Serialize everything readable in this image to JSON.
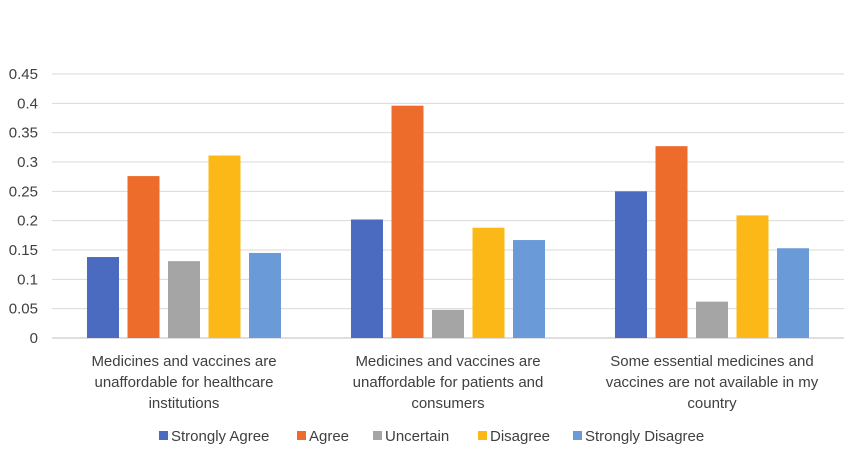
{
  "chart_data": {
    "type": "bar",
    "title": "",
    "xlabel": "",
    "ylabel": "",
    "ylim": [
      0,
      0.45
    ],
    "yticks": [
      "0",
      "0.05",
      "0.1",
      "0.15",
      "0.2",
      "0.25",
      "0.3",
      "0.35",
      "0.4",
      "0.45"
    ],
    "grid": "horizontal",
    "legend_position": "bottom",
    "categories": [
      [
        "Medicines and vaccines are",
        "unaffordable for healthcare",
        "institutions"
      ],
      [
        "Medicines and vaccines are",
        "unaffordable for patients and",
        "consumers"
      ],
      [
        "Some essential medicines and",
        "vaccines are not available in my",
        "country"
      ]
    ],
    "series": [
      {
        "name": "Strongly Agree",
        "color": "#4a6bbf",
        "values": [
          0.138,
          0.202,
          0.25
        ]
      },
      {
        "name": "Agree",
        "color": "#ed6c2b",
        "values": [
          0.276,
          0.396,
          0.327
        ]
      },
      {
        "name": "Uncertain",
        "color": "#a5a5a5",
        "values": [
          0.131,
          0.048,
          0.062
        ]
      },
      {
        "name": "Disagree",
        "color": "#fbb816",
        "values": [
          0.311,
          0.188,
          0.209
        ]
      },
      {
        "name": "Strongly Disagree",
        "color": "#6a9bd8",
        "values": [
          0.145,
          0.167,
          0.153
        ]
      }
    ]
  }
}
